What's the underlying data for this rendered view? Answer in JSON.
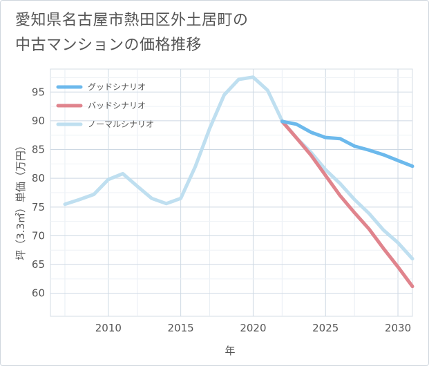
{
  "title_line1": "愛知県名古屋市熱田区外土居町の",
  "title_line2": "中古マンションの価格推移",
  "chart_data": {
    "type": "line",
    "title": "愛知県名古屋市熱田区外土居町の中古マンションの価格推移",
    "xlabel": "年",
    "ylabel": "坪（3.3㎡）単価（万円）",
    "xlim": [
      2006,
      2031
    ],
    "ylim": [
      56,
      99
    ],
    "xticks": [
      2010,
      2015,
      2020,
      2025,
      2030
    ],
    "yticks": [
      60,
      65,
      70,
      75,
      80,
      85,
      90,
      95
    ],
    "legend_position": "top-left",
    "series": [
      {
        "name": "グッドシナリオ",
        "color": "#6cb9ec",
        "x": [
          2022,
          2023,
          2024,
          2025,
          2026,
          2027,
          2028,
          2029,
          2030,
          2031
        ],
        "y": [
          89.9,
          89.4,
          88.0,
          87.1,
          86.9,
          85.6,
          84.9,
          84.1,
          83.1,
          82.1
        ]
      },
      {
        "name": "バッドシナリオ",
        "color": "#e0848d",
        "x": [
          2022,
          2023,
          2024,
          2025,
          2026,
          2027,
          2028,
          2029,
          2030,
          2031
        ],
        "y": [
          89.9,
          87.0,
          84.0,
          80.5,
          77.0,
          74.0,
          71.2,
          67.8,
          64.6,
          61.2
        ]
      },
      {
        "name": "ノーマルシナリオ",
        "color": "#bfdff0",
        "x": [
          2007,
          2008,
          2009,
          2010,
          2011,
          2012,
          2013,
          2014,
          2015,
          2016,
          2017,
          2018,
          2019,
          2020,
          2021,
          2022,
          2023,
          2024,
          2025,
          2026,
          2027,
          2028,
          2029,
          2030,
          2031
        ],
        "y": [
          75.5,
          76.3,
          77.2,
          79.8,
          80.8,
          78.6,
          76.5,
          75.6,
          76.5,
          82.0,
          88.7,
          94.5,
          97.2,
          97.6,
          95.3,
          90.0,
          87.0,
          84.5,
          81.5,
          79.1,
          76.3,
          73.9,
          71.0,
          68.8,
          66.0
        ]
      }
    ]
  }
}
